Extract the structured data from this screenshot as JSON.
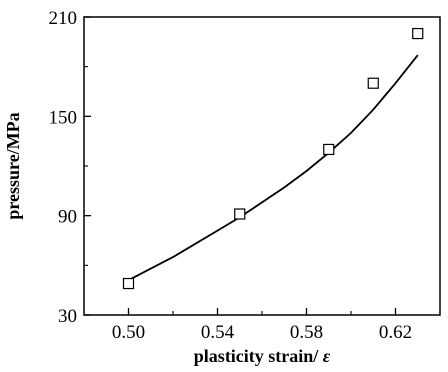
{
  "chart_data": {
    "type": "scatter",
    "title": "",
    "xlabel": "plasticity strain/ ",
    "xlabel_symbol": "ε",
    "ylabel": "pressure/MPa",
    "xlim": [
      0.48,
      0.64
    ],
    "ylim": [
      30,
      210
    ],
    "xticks": [
      0.5,
      0.54,
      0.58,
      0.62
    ],
    "xtick_labels": [
      "0.50",
      "0.54",
      "0.58",
      "0.62"
    ],
    "yticks": [
      30,
      90,
      150,
      210
    ],
    "ytick_labels": [
      "30",
      "90",
      "150",
      "210"
    ],
    "grid": false,
    "series": [
      {
        "marker": "open-square",
        "color": "#000000",
        "x": [
          0.5,
          0.55,
          0.59,
          0.61,
          0.63
        ],
        "y": [
          49,
          91,
          130,
          170,
          200
        ]
      }
    ],
    "fit_curve": {
      "style": "solid",
      "color": "#000000",
      "x": [
        0.5,
        0.51,
        0.52,
        0.53,
        0.54,
        0.55,
        0.56,
        0.57,
        0.58,
        0.59,
        0.6,
        0.61,
        0.62,
        0.63
      ],
      "y": [
        51,
        58,
        65,
        73,
        81,
        89,
        98,
        107,
        117,
        128,
        140,
        154,
        170,
        187
      ]
    }
  }
}
